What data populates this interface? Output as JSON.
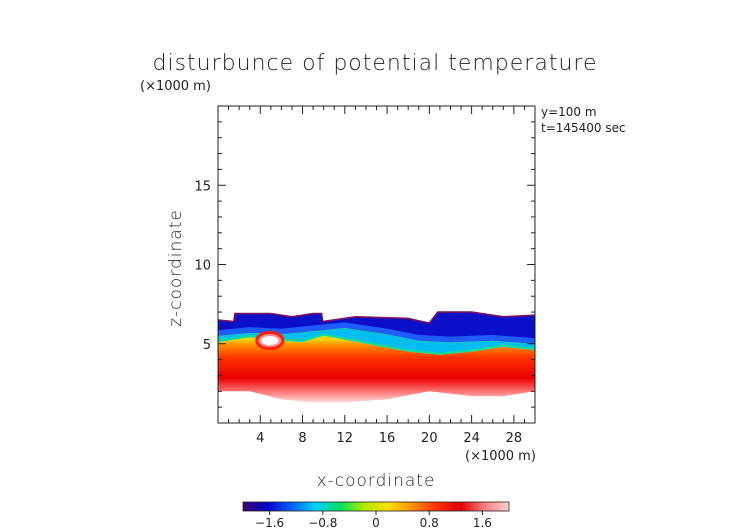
{
  "chart_data": {
    "type": "heatmap",
    "title": "disturbunce of potential temperature",
    "yunit": "(×1000 m)",
    "xunit": "(×1000 m)",
    "xlabel": "x-coordinate",
    "ylabel": "z-coordinate",
    "annotations": [
      "y=100 m",
      "t=145400 sec"
    ],
    "xlim": [
      0,
      30
    ],
    "ylim": [
      0,
      20
    ],
    "x_ticks": [
      4,
      8,
      12,
      16,
      20,
      24,
      28
    ],
    "x_tick_labels": [
      "4",
      "8",
      "12",
      "16",
      "20",
      "24",
      "28"
    ],
    "y_ticks": [
      5,
      10,
      15
    ],
    "y_tick_labels": [
      "5",
      "10",
      "15"
    ],
    "colorbar": {
      "range": [
        -2.0,
        2.0
      ],
      "ticks": [
        -1.6,
        -0.8,
        0,
        0.8,
        1.6
      ],
      "tick_labels": [
        "−1.6",
        "−0.8",
        "0",
        "0.8",
        "1.6"
      ],
      "colors": [
        "#3a0070",
        "#0000c8",
        "#0060ff",
        "#00d0ff",
        "#00e060",
        "#b0e800",
        "#ffe000",
        "#ff9000",
        "#ff3000",
        "#e00000",
        "#ff8080",
        "#ffd0d0"
      ]
    },
    "field": {
      "top_boundary": [
        [
          0,
          6.5
        ],
        [
          1.5,
          6.4
        ],
        [
          1.6,
          6.9
        ],
        [
          5,
          6.9
        ],
        [
          7,
          6.7
        ],
        [
          9,
          6.9
        ],
        [
          9.8,
          6.9
        ],
        [
          9.9,
          6.4
        ],
        [
          13,
          6.7
        ],
        [
          18,
          6.6
        ],
        [
          20,
          6.3
        ],
        [
          20.8,
          7.0
        ],
        [
          24,
          7.0
        ],
        [
          27,
          6.7
        ],
        [
          30,
          6.8
        ]
      ],
      "negative_bottom": [
        [
          0,
          5.5
        ],
        [
          3,
          5.7
        ],
        [
          6,
          5.6
        ],
        [
          9,
          5.8
        ],
        [
          12,
          6.0
        ],
        [
          16,
          5.6
        ],
        [
          19,
          5.2
        ],
        [
          22,
          5.1
        ],
        [
          26,
          5.2
        ],
        [
          30,
          5.0
        ]
      ],
      "zero_line": [
        [
          0,
          5.1
        ],
        [
          3,
          5.4
        ],
        [
          6,
          5.2
        ],
        [
          8,
          5.1
        ],
        [
          10,
          5.5
        ],
        [
          14,
          5.0
        ],
        [
          18,
          4.5
        ],
        [
          21,
          4.3
        ],
        [
          24,
          4.5
        ],
        [
          27,
          4.8
        ],
        [
          30,
          4.6
        ]
      ],
      "bottom_boundary": [
        [
          0,
          2.0
        ],
        [
          3,
          2.0
        ],
        [
          6,
          1.5
        ],
        [
          9,
          1.3
        ],
        [
          12,
          1.3
        ],
        [
          16,
          1.5
        ],
        [
          20,
          2.0
        ],
        [
          24,
          1.7
        ],
        [
          27,
          1.7
        ],
        [
          30,
          2.0
        ]
      ],
      "hot_bubble": {
        "x": 4.9,
        "z": 5.2,
        "rx": 1.0,
        "rz": 0.35
      }
    }
  }
}
